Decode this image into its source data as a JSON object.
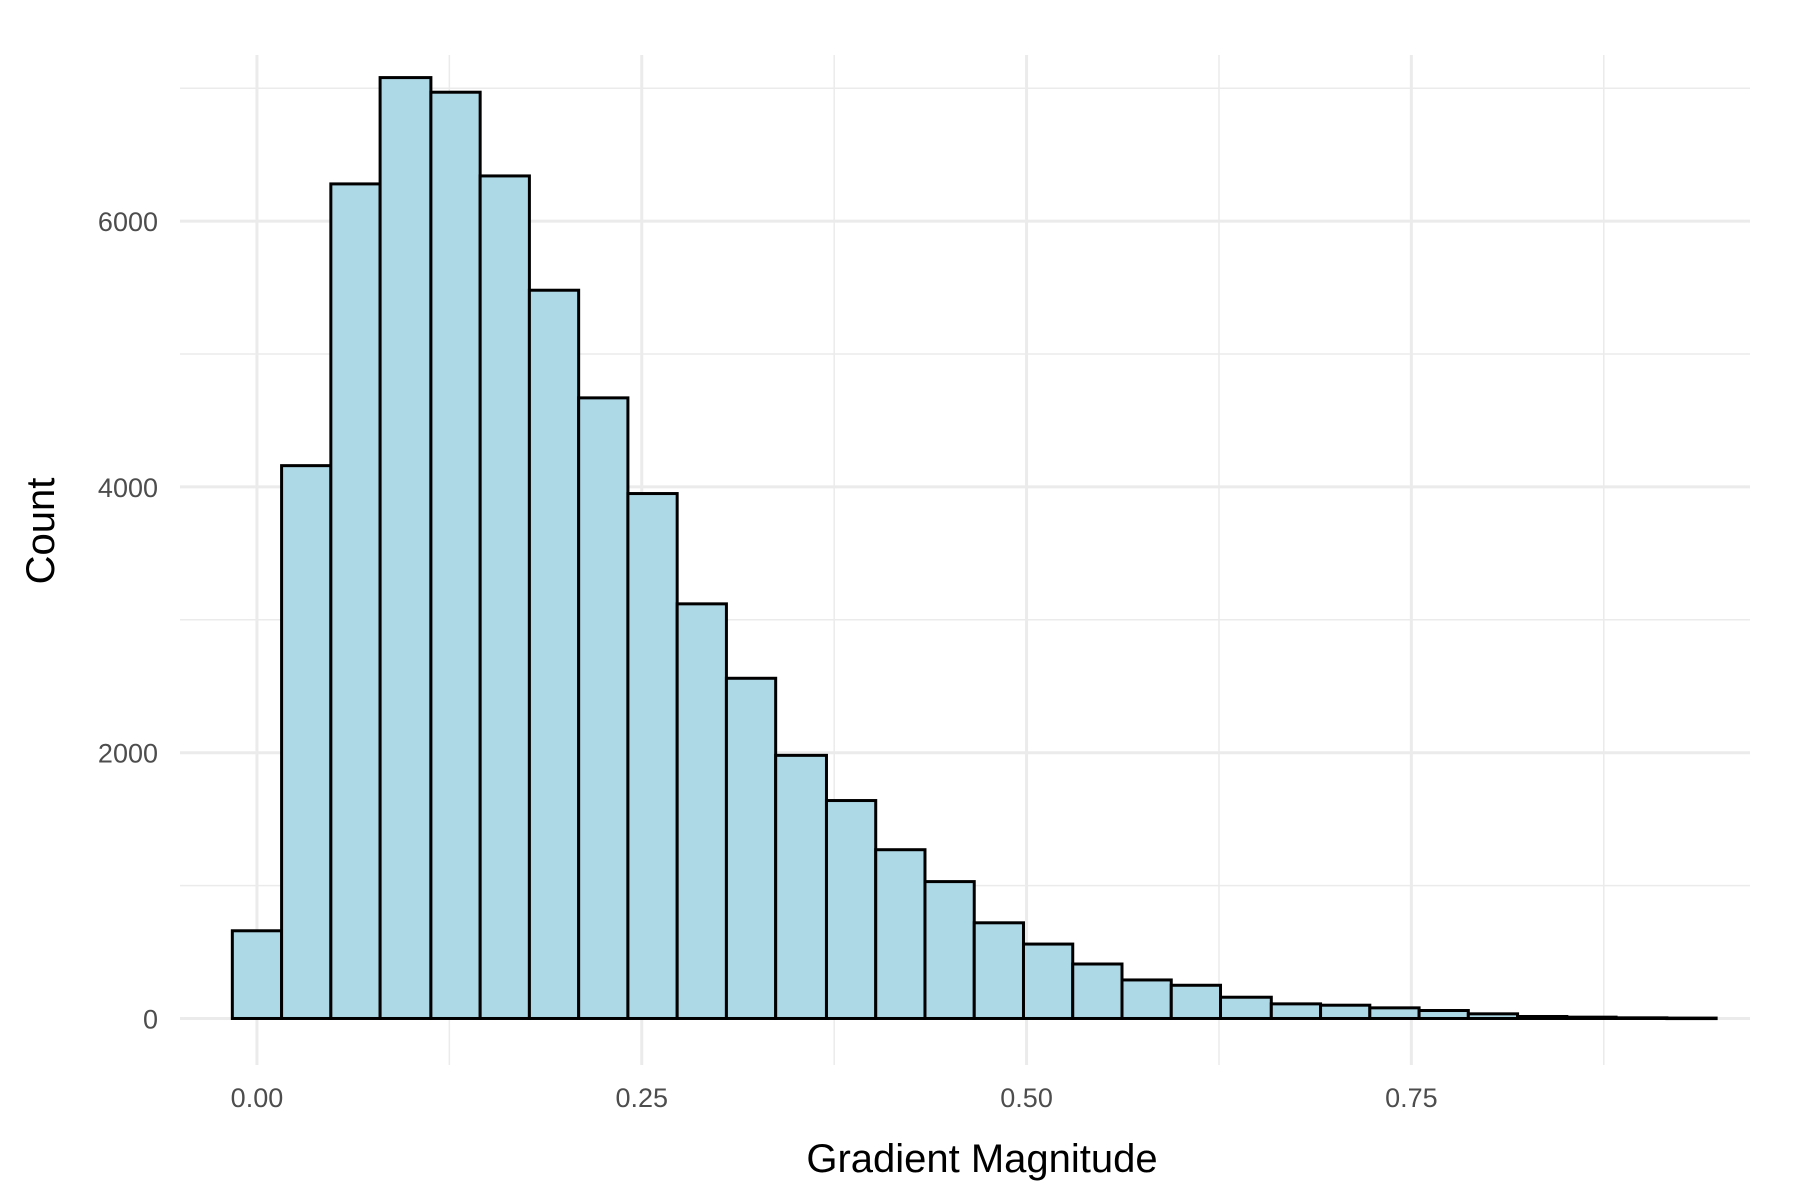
{
  "chart_data": {
    "type": "bar",
    "xlabel": "Gradient Magnitude",
    "ylabel": "Count",
    "xlim": [
      -0.05,
      0.97
    ],
    "ylim": [
      -350,
      7250
    ],
    "x_ticks": [
      0.0,
      0.25,
      0.5,
      0.75
    ],
    "x_tick_labels": [
      "0.00",
      "0.25",
      "0.50",
      "0.75"
    ],
    "y_ticks": [
      0,
      2000,
      4000,
      6000
    ],
    "y_tick_labels": [
      "0",
      "2000",
      "4000",
      "6000"
    ],
    "grid": true,
    "bin_width": 0.032,
    "bins": [
      {
        "x0": -0.016,
        "x1": 0.016,
        "count": 660
      },
      {
        "x0": 0.016,
        "x1": 0.048,
        "count": 4160
      },
      {
        "x0": 0.048,
        "x1": 0.08,
        "count": 6280
      },
      {
        "x0": 0.08,
        "x1": 0.113,
        "count": 7080
      },
      {
        "x0": 0.113,
        "x1": 0.145,
        "count": 6970
      },
      {
        "x0": 0.145,
        "x1": 0.177,
        "count": 6340
      },
      {
        "x0": 0.177,
        "x1": 0.209,
        "count": 5480
      },
      {
        "x0": 0.209,
        "x1": 0.241,
        "count": 4670
      },
      {
        "x0": 0.241,
        "x1": 0.273,
        "count": 3950
      },
      {
        "x0": 0.273,
        "x1": 0.305,
        "count": 3120
      },
      {
        "x0": 0.305,
        "x1": 0.337,
        "count": 2560
      },
      {
        "x0": 0.337,
        "x1": 0.37,
        "count": 1980
      },
      {
        "x0": 0.37,
        "x1": 0.402,
        "count": 1640
      },
      {
        "x0": 0.402,
        "x1": 0.434,
        "count": 1270
      },
      {
        "x0": 0.434,
        "x1": 0.466,
        "count": 1030
      },
      {
        "x0": 0.466,
        "x1": 0.498,
        "count": 720
      },
      {
        "x0": 0.498,
        "x1": 0.53,
        "count": 560
      },
      {
        "x0": 0.53,
        "x1": 0.562,
        "count": 410
      },
      {
        "x0": 0.562,
        "x1": 0.594,
        "count": 290
      },
      {
        "x0": 0.594,
        "x1": 0.626,
        "count": 250
      },
      {
        "x0": 0.626,
        "x1": 0.659,
        "count": 160
      },
      {
        "x0": 0.659,
        "x1": 0.691,
        "count": 110
      },
      {
        "x0": 0.691,
        "x1": 0.723,
        "count": 100
      },
      {
        "x0": 0.723,
        "x1": 0.755,
        "count": 80
      },
      {
        "x0": 0.755,
        "x1": 0.787,
        "count": 60
      },
      {
        "x0": 0.787,
        "x1": 0.819,
        "count": 35
      },
      {
        "x0": 0.819,
        "x1": 0.851,
        "count": 15
      },
      {
        "x0": 0.851,
        "x1": 0.883,
        "count": 10
      },
      {
        "x0": 0.883,
        "x1": 0.916,
        "count": 5
      },
      {
        "x0": 0.916,
        "x1": 0.948,
        "count": 3
      }
    ],
    "bar_fill": "#add8e6",
    "bar_outline": "#000000",
    "grid_color": "#ebebeb"
  }
}
